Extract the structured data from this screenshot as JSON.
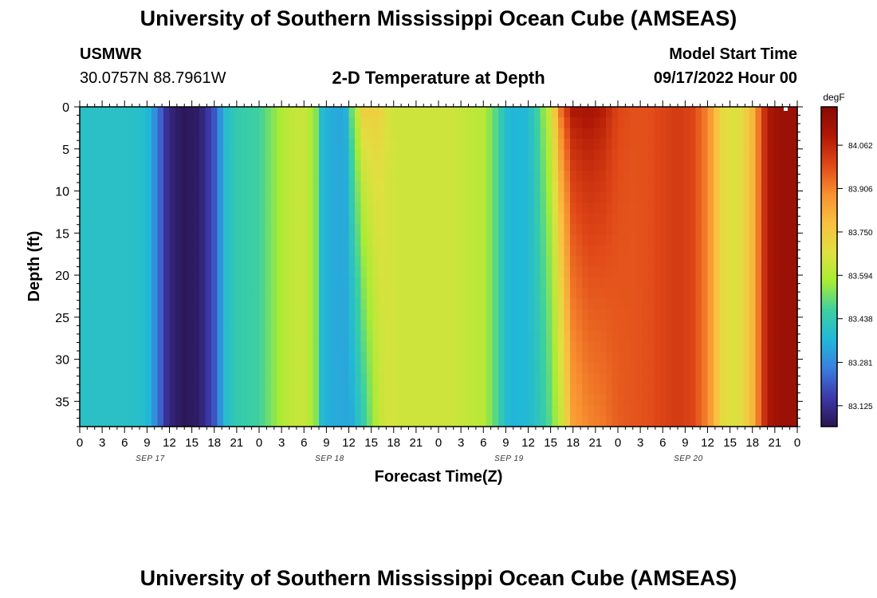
{
  "page": {
    "title": "University of Southern Mississippi Ocean Cube (AMSEAS)",
    "station": "USMWR",
    "coordinates": "30.0757N  88.7961W",
    "subtitle": "2-D Temperature at Depth",
    "model_start_label": "Model Start Time",
    "model_start_value": "09/17/2022 Hour 00",
    "footer_title": "University of Southern Mississippi Ocean Cube (AMSEAS)"
  },
  "chart_data": {
    "type": "heatmap",
    "title": "2-D Temperature at Depth",
    "xlabel": "Forecast Time(Z)",
    "ylabel": "Depth (ft)",
    "x_ticks": [
      "0",
      "3",
      "6",
      "9",
      "12",
      "15",
      "18",
      "21",
      "0",
      "3",
      "6",
      "9",
      "12",
      "15",
      "18",
      "21",
      "0",
      "3",
      "6",
      "9",
      "12",
      "15",
      "18",
      "21",
      "0",
      "3",
      "6",
      "9",
      "12",
      "15",
      "18",
      "21",
      "0"
    ],
    "date_labels": [
      {
        "label": "SEP 17",
        "hour": 9
      },
      {
        "label": "SEP 18",
        "hour": 33
      },
      {
        "label": "SEP 19",
        "hour": 57
      },
      {
        "label": "SEP 20",
        "hour": 81
      }
    ],
    "xlim_hours": [
      0,
      96
    ],
    "y_ticks": [
      0,
      5,
      10,
      15,
      20,
      25,
      30,
      35
    ],
    "ylim": [
      0,
      38
    ],
    "y_reversed": true,
    "colorbar": {
      "unit": "degF",
      "ticks": [
        "84.062",
        "83.906",
        "83.750",
        "83.594",
        "83.438",
        "83.281",
        "83.125"
      ],
      "range": [
        83.05,
        84.2
      ],
      "colors": [
        "#2a1450",
        "#3c38a8",
        "#3a7ee0",
        "#22b8d8",
        "#3cd0a0",
        "#a8ec34",
        "#e0e040",
        "#f8c040",
        "#f89030",
        "#e04818",
        "#b01806",
        "#880a04"
      ]
    },
    "time_hours": [
      0,
      6,
      9,
      10.5,
      11.5,
      12.5,
      14,
      16,
      18,
      19.5,
      21,
      24,
      28,
      30,
      31.5,
      32.5,
      34,
      35.5,
      36.5,
      38,
      40,
      41.5,
      43,
      46,
      50,
      54,
      56,
      57,
      58,
      60,
      61.5,
      63,
      64.5,
      66,
      68,
      70,
      72,
      74,
      76,
      78,
      80,
      82,
      84,
      86,
      88,
      90,
      92,
      94,
      96
    ],
    "surface_temp_degF": [
      83.4,
      83.4,
      83.38,
      83.25,
      83.14,
      83.09,
      83.06,
      83.08,
      83.2,
      83.38,
      83.44,
      83.47,
      83.62,
      83.63,
      83.56,
      83.36,
      83.34,
      83.33,
      83.55,
      83.76,
      83.74,
      83.65,
      83.64,
      83.64,
      83.64,
      83.6,
      83.47,
      83.38,
      83.36,
      83.37,
      83.5,
      83.66,
      83.98,
      84.12,
      84.14,
      84.1,
      84.0,
      83.98,
      83.98,
      84.0,
      84.02,
      84.0,
      83.9,
      83.7,
      83.66,
      83.8,
      84.1,
      84.15,
      84.15
    ],
    "bottom_temp_degF": [
      83.4,
      83.4,
      83.38,
      83.25,
      83.14,
      83.09,
      83.06,
      83.08,
      83.2,
      83.38,
      83.44,
      83.47,
      83.62,
      83.63,
      83.56,
      83.36,
      83.34,
      83.33,
      83.34,
      83.45,
      83.62,
      83.66,
      83.64,
      83.64,
      83.64,
      83.6,
      83.47,
      83.38,
      83.36,
      83.37,
      83.42,
      83.5,
      83.64,
      83.85,
      83.9,
      83.92,
      83.96,
      83.97,
      83.98,
      84.0,
      84.02,
      84.0,
      83.9,
      83.7,
      83.66,
      83.8,
      84.1,
      84.15,
      84.15
    ],
    "grid": false
  }
}
